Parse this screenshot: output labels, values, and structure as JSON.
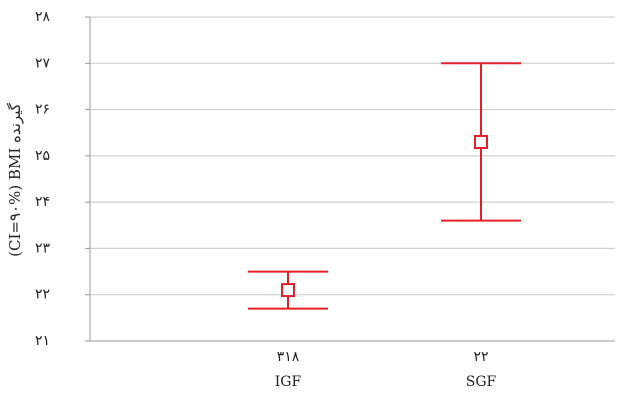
{
  "chart_data": {
    "type": "errorbar",
    "y_label": "(CI=۹۰%) BMI گیرنده",
    "categories": [
      "IGF",
      "SGF"
    ],
    "n_labels": [
      "۳۱۸",
      "۲۲"
    ],
    "values": [
      22.1,
      25.3
    ],
    "lower": [
      21.7,
      23.6
    ],
    "upper": [
      22.5,
      27.0
    ],
    "color": "#e0202a",
    "ylim": [
      21,
      28
    ],
    "yticks": [
      {
        "value": 21,
        "label": "۲۱"
      },
      {
        "value": 22,
        "label": "۲۲"
      },
      {
        "value": 23,
        "label": "۲۳"
      },
      {
        "value": 24,
        "label": "۲۴"
      },
      {
        "value": 25,
        "label": "۲۵"
      },
      {
        "value": 26,
        "label": "۲۶"
      },
      {
        "value": 27,
        "label": "۲۷"
      },
      {
        "value": 28,
        "label": "۲۸"
      }
    ],
    "grid": true
  }
}
